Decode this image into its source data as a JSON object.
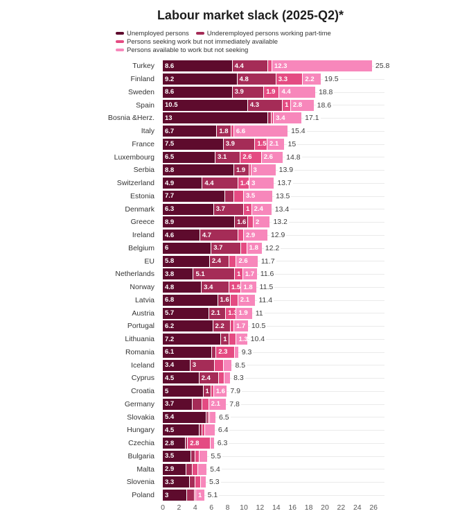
{
  "title": "Labour market slack (2025-Q2)*",
  "colors": {
    "background": "#ffffff",
    "title_text": "#1d1d1d",
    "label_text": "#333333",
    "total_text": "#3d3d3d",
    "axis_text": "#555555",
    "row_line": "#eaeaea"
  },
  "chart_data": {
    "type": "bar",
    "orientation": "horizontal",
    "stacked": true,
    "title": "Labour market slack (2025-Q2)*",
    "xlabel": "",
    "ylabel": "",
    "xlim": [
      0,
      26
    ],
    "grid": "row-leader-lines",
    "legend_position": "top-left",
    "legend": [
      "Unemployed persons",
      "Underemployed persons working part-time",
      "Persons seeking work but not immediately available",
      "Persons available to work but not seeking"
    ],
    "series_colors": [
      "#5e0b2d",
      "#a52c57",
      "#e44b82",
      "#f787bb"
    ],
    "x_ticks": [
      "0",
      "2",
      "4",
      "6",
      "8",
      "10",
      "12",
      "14",
      "16",
      "18",
      "20",
      "22",
      "24",
      "26"
    ],
    "rows": [
      {
        "country": "Turkey",
        "values": [
          8.6,
          4.4,
          0.5,
          12.3
        ],
        "labels": [
          "8.6",
          "4.4",
          "",
          "12.3"
        ],
        "total": 25.8,
        "total_label": "25.8"
      },
      {
        "country": "Finland",
        "values": [
          9.2,
          4.8,
          3.3,
          2.2
        ],
        "labels": [
          "9.2",
          "4.8",
          "3.3",
          "2.2"
        ],
        "total": 19.5,
        "total_label": "19.5"
      },
      {
        "country": "Sweden",
        "values": [
          8.6,
          3.9,
          1.9,
          4.4
        ],
        "labels": [
          "8.6",
          "3.9",
          "1.9",
          "4.4"
        ],
        "total": 18.8,
        "total_label": "18.8"
      },
      {
        "country": "Spain",
        "values": [
          10.5,
          4.3,
          1,
          2.8
        ],
        "labels": [
          "10.5",
          "4.3",
          "1",
          "2.8"
        ],
        "total": 18.6,
        "total_label": "18.6"
      },
      {
        "country": "Bosnia &Herz.",
        "values": [
          13,
          0.4,
          0.3,
          3.4
        ],
        "labels": [
          "13",
          "",
          "",
          "3.4"
        ],
        "total": 17.1,
        "total_label": "17.1"
      },
      {
        "country": "Italy",
        "values": [
          6.7,
          1.8,
          0.3,
          6.6
        ],
        "labels": [
          "6.7",
          "1.8",
          "",
          "6.6"
        ],
        "total": 15.4,
        "total_label": "15.4"
      },
      {
        "country": "France",
        "values": [
          7.5,
          3.9,
          1.5,
          2.1
        ],
        "labels": [
          "7.5",
          "3.9",
          "1.5",
          "2.1"
        ],
        "total": 15,
        "total_label": "15"
      },
      {
        "country": "Luxembourg",
        "values": [
          6.5,
          3.1,
          2.6,
          2.6
        ],
        "labels": [
          "6.5",
          "3.1",
          "2.6",
          "2.6"
        ],
        "total": 14.8,
        "total_label": "14.8"
      },
      {
        "country": "Serbia",
        "values": [
          8.8,
          1.9,
          0.2,
          3
        ],
        "labels": [
          "8.8",
          "1.9",
          "",
          "3"
        ],
        "total": 13.9,
        "total_label": "13.9"
      },
      {
        "country": "Switzerland",
        "values": [
          4.9,
          4.4,
          1.4,
          3
        ],
        "labels": [
          "4.9",
          "4.4",
          "1.4",
          "3"
        ],
        "total": 13.7,
        "total_label": "13.7"
      },
      {
        "country": "Estonia",
        "values": [
          7.7,
          1.1,
          1.2,
          3.5
        ],
        "labels": [
          "7.7",
          "",
          "",
          "3.5"
        ],
        "total": 13.5,
        "total_label": "13.5"
      },
      {
        "country": "Denmark",
        "values": [
          6.3,
          3.7,
          1,
          2.4
        ],
        "labels": [
          "6.3",
          "3.7",
          "1",
          "2.4"
        ],
        "total": 13.4,
        "total_label": "13.4"
      },
      {
        "country": "Greece",
        "values": [
          8.9,
          1.6,
          0.7,
          2
        ],
        "labels": [
          "8.9",
          "1.6",
          "",
          "2"
        ],
        "total": 13.2,
        "total_label": "13.2"
      },
      {
        "country": "Ireland",
        "values": [
          4.6,
          4.7,
          0.7,
          2.9
        ],
        "labels": [
          "4.6",
          "4.7",
          "",
          "2.9"
        ],
        "total": 12.9,
        "total_label": "12.9"
      },
      {
        "country": "Belgium",
        "values": [
          6,
          3.7,
          0.7,
          1.8
        ],
        "labels": [
          "6",
          "3.7",
          "",
          "1.8"
        ],
        "total": 12.2,
        "total_label": "12.2"
      },
      {
        "country": "EU",
        "values": [
          5.8,
          2.4,
          0.9,
          2.6
        ],
        "labels": [
          "5.8",
          "2.4",
          "",
          "2.6"
        ],
        "total": 11.7,
        "total_label": "11.7"
      },
      {
        "country": "Netherlands",
        "values": [
          3.8,
          5.1,
          1,
          1.7
        ],
        "labels": [
          "3.8",
          "5.1",
          "1",
          "1.7"
        ],
        "total": 11.6,
        "total_label": "11.6"
      },
      {
        "country": "Norway",
        "values": [
          4.8,
          3.4,
          1.5,
          1.8
        ],
        "labels": [
          "4.8",
          "3.4",
          "1.5",
          "1.8"
        ],
        "total": 11.5,
        "total_label": "11.5"
      },
      {
        "country": "Latvia",
        "values": [
          6.8,
          1.6,
          0.9,
          2.1
        ],
        "labels": [
          "6.8",
          "1.6",
          "",
          "2.1"
        ],
        "total": 11.4,
        "total_label": "11.4"
      },
      {
        "country": "Austria",
        "values": [
          5.7,
          2.1,
          1.3,
          1.9
        ],
        "labels": [
          "5.7",
          "2.1",
          "1.3",
          "1.9"
        ],
        "total": 11,
        "total_label": "11"
      },
      {
        "country": "Portugal",
        "values": [
          6.2,
          2.2,
          0.4,
          1.7
        ],
        "labels": [
          "6.2",
          "2.2",
          "",
          "1.7"
        ],
        "total": 10.5,
        "total_label": "10.5"
      },
      {
        "country": "Lithuania",
        "values": [
          7.2,
          1,
          0.9,
          1.3
        ],
        "labels": [
          "7.2",
          "1",
          "",
          "1.3"
        ],
        "total": 10.4,
        "total_label": "10.4"
      },
      {
        "country": "Romania",
        "values": [
          6.1,
          0.5,
          2.3,
          0.4
        ],
        "labels": [
          "6.1",
          "",
          "2.3",
          ""
        ],
        "total": 9.3,
        "total_label": "9.3"
      },
      {
        "country": "Iceland",
        "values": [
          3.4,
          3,
          1.1,
          1
        ],
        "labels": [
          "3.4",
          "3",
          "",
          ""
        ],
        "total": 8.5,
        "total_label": "8.5"
      },
      {
        "country": "Cyprus",
        "values": [
          4.5,
          2.4,
          0.7,
          0.7
        ],
        "labels": [
          "4.5",
          "2.4",
          "",
          ""
        ],
        "total": 8.3,
        "total_label": "8.3"
      },
      {
        "country": "Croatia",
        "values": [
          5,
          1,
          0.3,
          1.6
        ],
        "labels": [
          "5",
          "1",
          "",
          "1.6"
        ],
        "total": 7.9,
        "total_label": "7.9"
      },
      {
        "country": "Germany",
        "values": [
          3.7,
          1.2,
          0.8,
          2.1
        ],
        "labels": [
          "3.7",
          "",
          "",
          "2.1"
        ],
        "total": 7.8,
        "total_label": "7.8"
      },
      {
        "country": "Slovakia",
        "values": [
          5.4,
          0.2,
          0.2,
          0.7
        ],
        "labels": [
          "5.4",
          "",
          "",
          ""
        ],
        "total": 6.5,
        "total_label": "6.5"
      },
      {
        "country": "Hungary",
        "values": [
          4.5,
          0.4,
          0.3,
          1.2
        ],
        "labels": [
          "4.5",
          "",
          "",
          ""
        ],
        "total": 6.4,
        "total_label": "6.4"
      },
      {
        "country": "Czechia",
        "values": [
          2.8,
          0.3,
          2.8,
          0.4
        ],
        "labels": [
          "2.8",
          "",
          "2.8",
          ""
        ],
        "total": 6.3,
        "total_label": "6.3"
      },
      {
        "country": "Bulgaria",
        "values": [
          3.5,
          0.5,
          0.5,
          1
        ],
        "labels": [
          "3.5",
          "",
          "",
          ""
        ],
        "total": 5.5,
        "total_label": "5.5"
      },
      {
        "country": "Malta",
        "values": [
          2.9,
          0.8,
          0.7,
          1
        ],
        "labels": [
          "2.9",
          "",
          "",
          ""
        ],
        "total": 5.4,
        "total_label": "5.4"
      },
      {
        "country": "Slovenia",
        "values": [
          3.3,
          0.7,
          0.7,
          0.6
        ],
        "labels": [
          "3.3",
          "",
          "",
          ""
        ],
        "total": 5.3,
        "total_label": "5.3"
      },
      {
        "country": "Poland",
        "values": [
          3,
          0.9,
          0.2,
          1
        ],
        "labels": [
          "3",
          "",
          "",
          "1"
        ],
        "total": 5.1,
        "total_label": "5.1"
      }
    ]
  }
}
